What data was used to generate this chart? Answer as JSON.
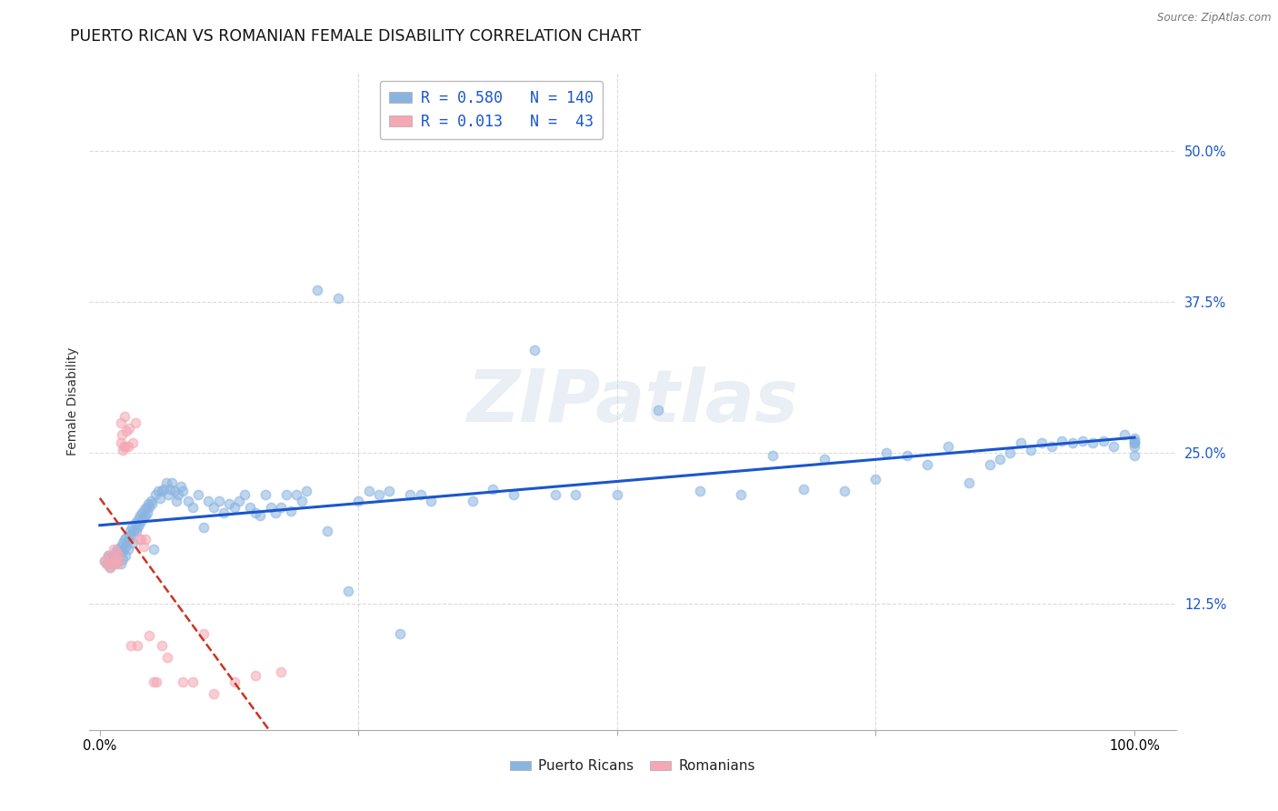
{
  "title": "PUERTO RICAN VS ROMANIAN FEMALE DISABILITY CORRELATION CHART",
  "source": "Source: ZipAtlas.com",
  "ylabel": "Female Disability",
  "y_tick_labels": [
    "12.5%",
    "25.0%",
    "37.5%",
    "50.0%"
  ],
  "y_ticks": [
    0.125,
    0.25,
    0.375,
    0.5
  ],
  "ylim": [
    0.02,
    0.565
  ],
  "xlim": [
    -0.01,
    1.04
  ],
  "blue_color": "#8ab4e0",
  "pink_color": "#f4a7b4",
  "blue_line_color": "#1a56cc",
  "pink_line_color": "#cc3322",
  "legend_blue_label": "R = 0.580   N = 140",
  "legend_pink_label": "R = 0.013   N =  43",
  "legend_label_blue": "Puerto Ricans",
  "legend_label_pink": "Romanians",
  "background_color": "#ffffff",
  "grid_color": "#cccccc",
  "title_fontsize": 12.5,
  "axis_label_fontsize": 10,
  "tick_fontsize": 10.5,
  "watermark": "ZIPatlas",
  "blue_x": [
    0.005,
    0.007,
    0.008,
    0.01,
    0.01,
    0.011,
    0.012,
    0.013,
    0.015,
    0.015,
    0.016,
    0.017,
    0.018,
    0.018,
    0.019,
    0.02,
    0.02,
    0.021,
    0.022,
    0.022,
    0.023,
    0.024,
    0.025,
    0.025,
    0.026,
    0.027,
    0.028,
    0.029,
    0.03,
    0.031,
    0.032,
    0.033,
    0.034,
    0.035,
    0.036,
    0.037,
    0.038,
    0.039,
    0.04,
    0.041,
    0.042,
    0.043,
    0.044,
    0.045,
    0.046,
    0.047,
    0.048,
    0.049,
    0.05,
    0.052,
    0.054,
    0.056,
    0.058,
    0.06,
    0.062,
    0.064,
    0.066,
    0.068,
    0.07,
    0.072,
    0.074,
    0.076,
    0.078,
    0.08,
    0.085,
    0.09,
    0.095,
    0.1,
    0.105,
    0.11,
    0.115,
    0.12,
    0.125,
    0.13,
    0.135,
    0.14,
    0.145,
    0.15,
    0.155,
    0.16,
    0.165,
    0.17,
    0.175,
    0.18,
    0.185,
    0.19,
    0.195,
    0.2,
    0.21,
    0.22,
    0.23,
    0.24,
    0.25,
    0.26,
    0.27,
    0.28,
    0.29,
    0.3,
    0.31,
    0.32,
    0.36,
    0.38,
    0.4,
    0.42,
    0.44,
    0.46,
    0.5,
    0.54,
    0.58,
    0.62,
    0.65,
    0.68,
    0.7,
    0.72,
    0.75,
    0.76,
    0.78,
    0.8,
    0.82,
    0.84,
    0.86,
    0.87,
    0.88,
    0.89,
    0.9,
    0.91,
    0.92,
    0.93,
    0.94,
    0.95,
    0.96,
    0.97,
    0.98,
    0.99,
    1.0,
    1.0,
    1.0,
    1.0,
    1.0,
    1.0
  ],
  "blue_y": [
    0.16,
    0.158,
    0.165,
    0.163,
    0.155,
    0.16,
    0.162,
    0.158,
    0.165,
    0.168,
    0.162,
    0.17,
    0.16,
    0.168,
    0.165,
    0.172,
    0.158,
    0.168,
    0.175,
    0.162,
    0.17,
    0.178,
    0.165,
    0.172,
    0.18,
    0.17,
    0.178,
    0.185,
    0.182,
    0.188,
    0.175,
    0.185,
    0.192,
    0.185,
    0.188,
    0.195,
    0.19,
    0.198,
    0.193,
    0.2,
    0.197,
    0.203,
    0.198,
    0.205,
    0.2,
    0.208,
    0.205,
    0.21,
    0.208,
    0.17,
    0.215,
    0.218,
    0.212,
    0.218,
    0.22,
    0.225,
    0.215,
    0.22,
    0.225,
    0.218,
    0.21,
    0.215,
    0.222,
    0.218,
    0.21,
    0.205,
    0.215,
    0.188,
    0.21,
    0.205,
    0.21,
    0.2,
    0.208,
    0.205,
    0.21,
    0.215,
    0.205,
    0.2,
    0.198,
    0.215,
    0.205,
    0.2,
    0.205,
    0.215,
    0.202,
    0.215,
    0.21,
    0.218,
    0.385,
    0.185,
    0.378,
    0.135,
    0.21,
    0.218,
    0.215,
    0.218,
    0.1,
    0.215,
    0.215,
    0.21,
    0.21,
    0.22,
    0.215,
    0.335,
    0.215,
    0.215,
    0.215,
    0.285,
    0.218,
    0.215,
    0.248,
    0.22,
    0.245,
    0.218,
    0.228,
    0.25,
    0.248,
    0.24,
    0.255,
    0.225,
    0.24,
    0.245,
    0.25,
    0.258,
    0.252,
    0.258,
    0.255,
    0.26,
    0.258,
    0.26,
    0.258,
    0.26,
    0.255,
    0.265,
    0.258,
    0.262,
    0.26,
    0.255,
    0.258,
    0.248
  ],
  "pink_x": [
    0.005,
    0.006,
    0.008,
    0.01,
    0.01,
    0.012,
    0.013,
    0.014,
    0.015,
    0.016,
    0.017,
    0.018,
    0.019,
    0.02,
    0.02,
    0.021,
    0.022,
    0.023,
    0.024,
    0.025,
    0.026,
    0.027,
    0.028,
    0.03,
    0.032,
    0.034,
    0.036,
    0.038,
    0.04,
    0.042,
    0.044,
    0.048,
    0.052,
    0.055,
    0.06,
    0.065,
    0.08,
    0.09,
    0.1,
    0.11,
    0.13,
    0.15,
    0.175
  ],
  "pink_y": [
    0.16,
    0.158,
    0.165,
    0.155,
    0.162,
    0.158,
    0.17,
    0.158,
    0.162,
    0.168,
    0.158,
    0.165,
    0.16,
    0.275,
    0.258,
    0.265,
    0.252,
    0.255,
    0.28,
    0.255,
    0.268,
    0.255,
    0.27,
    0.09,
    0.258,
    0.275,
    0.09,
    0.178,
    0.178,
    0.172,
    0.178,
    0.098,
    0.06,
    0.06,
    0.09,
    0.08,
    0.06,
    0.06,
    0.1,
    0.05,
    0.06,
    0.065,
    0.068
  ]
}
